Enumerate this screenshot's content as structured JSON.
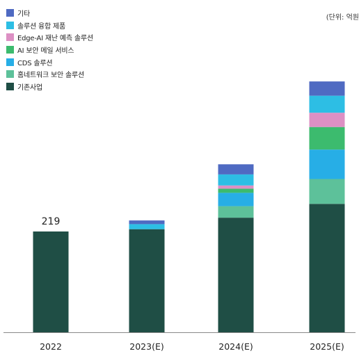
{
  "unit_label": "(단위: 억원",
  "chart_data": {
    "type": "bar",
    "stacked": true,
    "categories": [
      "2022",
      "2023(E)",
      "2024(E)",
      "2025(E)"
    ],
    "series": [
      {
        "name": "기존사업",
        "color": "#1f4e45",
        "values": [
          219,
          224,
          249,
          279
        ]
      },
      {
        "name": "홈네트워크 보안 솔루션",
        "color": "#5dc19a",
        "values": [
          0,
          0,
          25,
          54
        ]
      },
      {
        "name": "CDS 솔루션",
        "color": "#27aee6",
        "values": [
          0,
          0,
          29,
          64
        ]
      },
      {
        "name": "AI 보안 메일 서비스",
        "color": "#3cbb6e",
        "values": [
          0,
          0,
          9,
          49
        ]
      },
      {
        "name": "Edge-AI 재난 예측 솔루션",
        "color": "#dd90c4",
        "values": [
          0,
          0,
          7,
          31
        ]
      },
      {
        "name": "솔루션 융합 제품",
        "color": "#2dbee4",
        "values": [
          0,
          11,
          24,
          37
        ]
      },
      {
        "name": "기타",
        "color": "#4f6ac2",
        "values": [
          0,
          8,
          22,
          31
        ]
      }
    ],
    "data_labels": [
      {
        "category": "2022",
        "text": "219"
      }
    ],
    "legend_order": [
      "기타",
      "솔루션 융합 제품",
      "Edge-AI 재난 예측 솔루션",
      "AI 보안 메일 서비스",
      "CDS 솔루션",
      "홈네트워크 보안 솔루션",
      "기존사업"
    ],
    "legend_position": "top-left",
    "grid": false,
    "xlabel": "",
    "ylabel": "",
    "ylim": [
      0,
      600
    ]
  }
}
